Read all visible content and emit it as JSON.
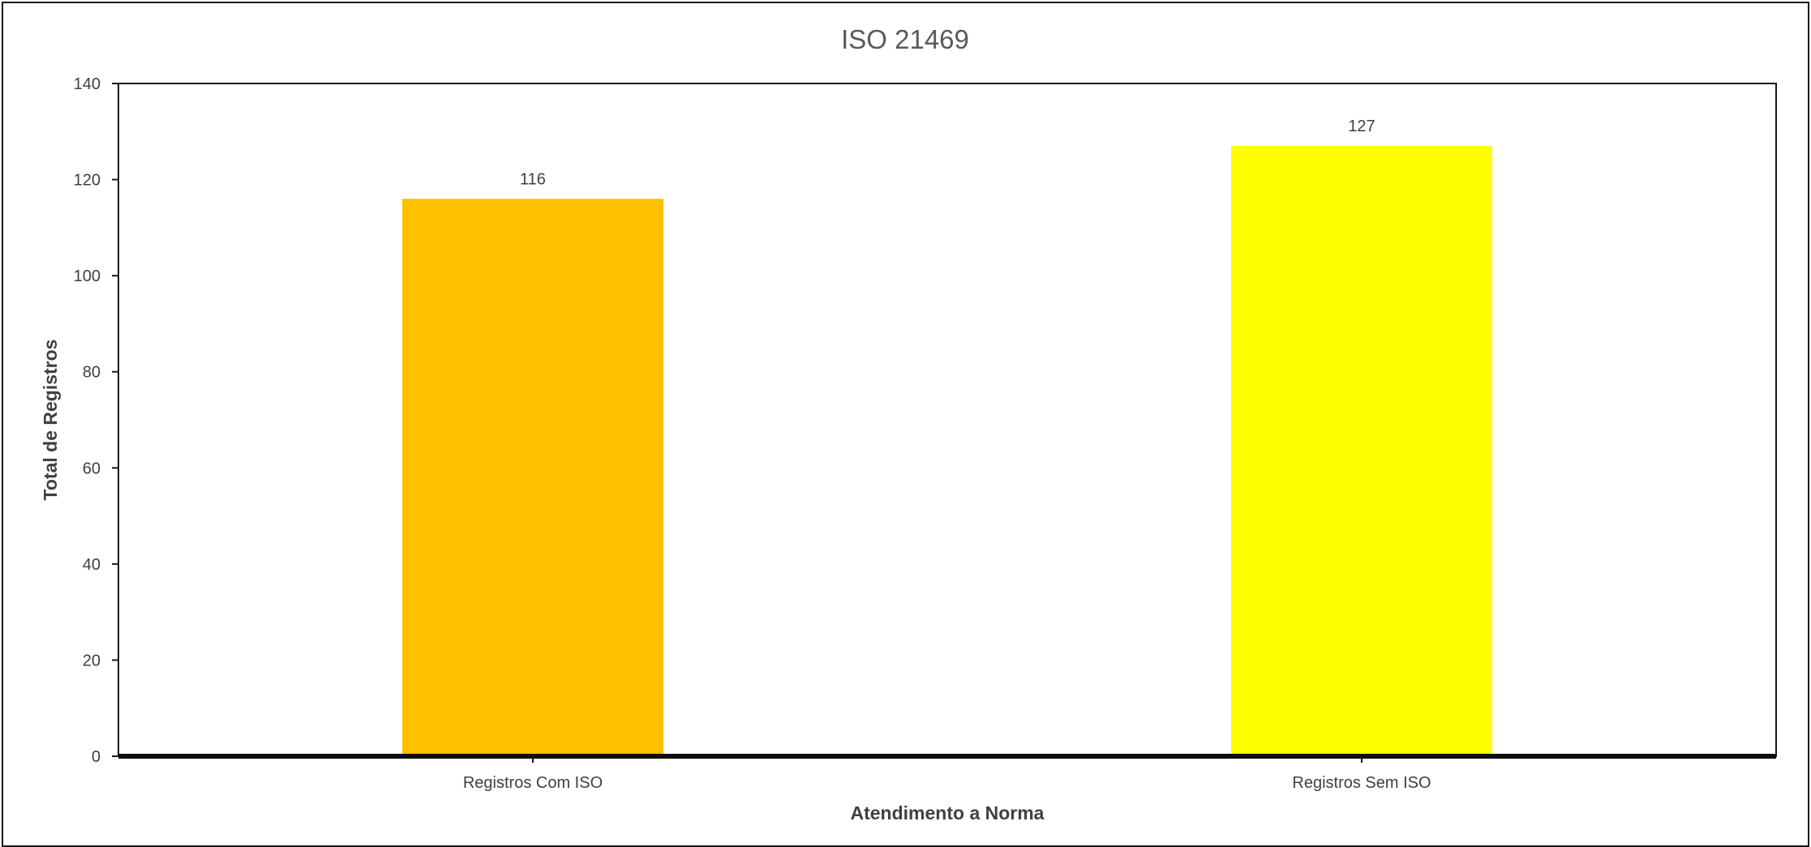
{
  "chart_data": {
    "type": "bar",
    "title": "ISO 21469",
    "xlabel": "Atendimento a Norma",
    "ylabel": "Total de Registros",
    "categories": [
      "Registros Com ISO",
      "Registros Sem ISO"
    ],
    "values": [
      116,
      127
    ],
    "data_labels": [
      "116",
      "127"
    ],
    "bar_colors": [
      "#FFC000",
      "#FFFF00"
    ],
    "ylim": [
      0,
      140
    ],
    "yticks": [
      0,
      20,
      40,
      60,
      80,
      100,
      120,
      140
    ],
    "grid": false,
    "legend": "none"
  }
}
